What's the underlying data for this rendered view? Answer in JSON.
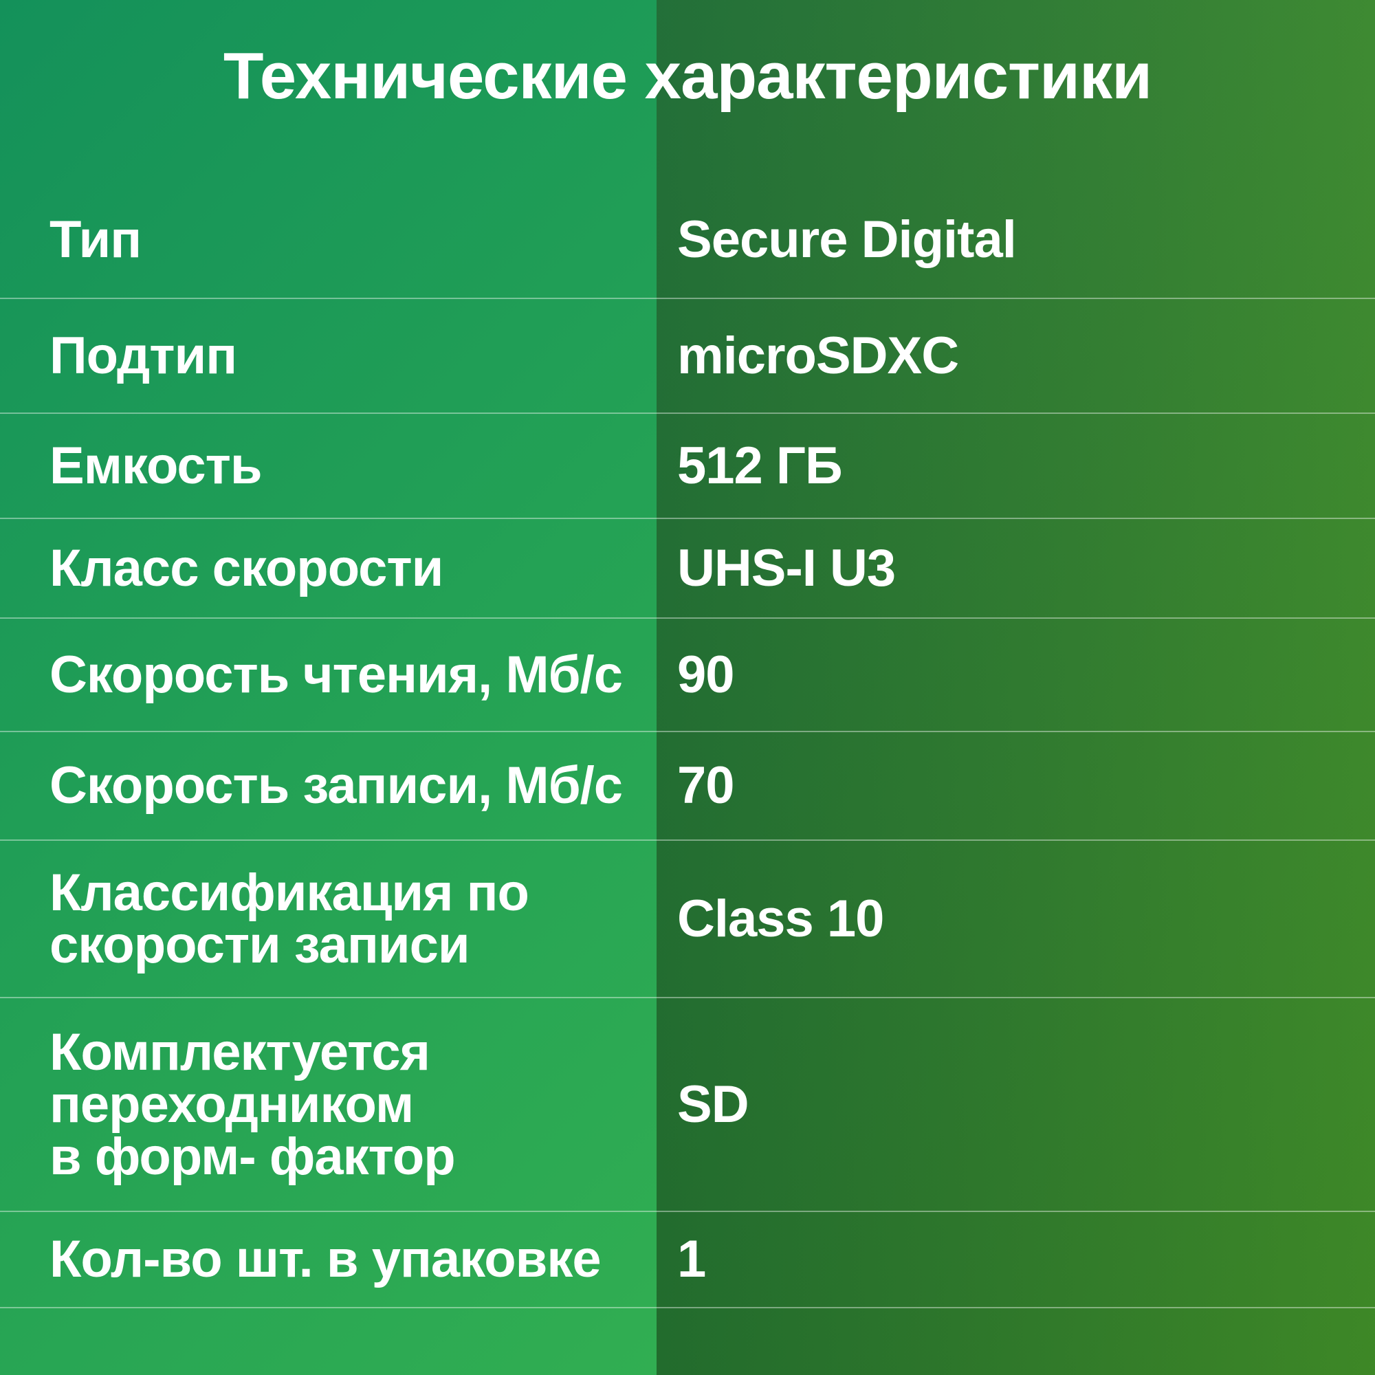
{
  "title": "Технические характеристики",
  "table": {
    "rows": [
      {
        "label": "Тип",
        "value": "Secure Digital"
      },
      {
        "label": "Подтип",
        "value": "microSDXC"
      },
      {
        "label": "Емкость",
        "value": "512 ГБ"
      },
      {
        "label": "Класс скорости",
        "value": "UHS-I U3"
      },
      {
        "label": "Скорость чтения, Мб/с",
        "value": "90"
      },
      {
        "label": "Скорость записи, Мб/с",
        "value": "70"
      },
      {
        "label": "Классификация по\nскорости записи",
        "value": "Class 10"
      },
      {
        "label": "Комплектуется\nпереходником\nв форм- фактор",
        "value": "SD"
      },
      {
        "label": "Кол-во шт. в упаковке",
        "value": "1"
      }
    ]
  },
  "colors": {
    "text": "#ffffff",
    "divider": "rgba(255,255,255,0.40)",
    "left_gradient_top": "#14915a",
    "left_gradient_mid": "#23a155",
    "left_gradient_bottom": "#31ae52",
    "right_gradient_top": "#1f7237",
    "right_gradient_mid": "#2e7e2c",
    "right_gradient_bottom": "#3b8b22"
  }
}
